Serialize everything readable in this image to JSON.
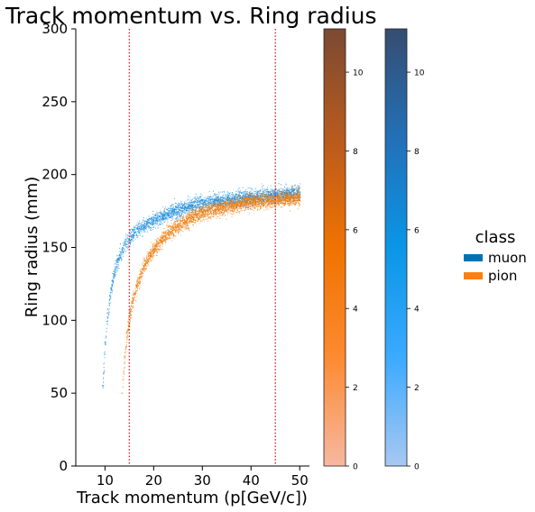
{
  "chart_data": {
    "type": "heatmap",
    "title": "Track momentum vs. Ring radius",
    "xlabel": "Track momentum (p[GeV/c])",
    "ylabel": "Ring radius (mm)",
    "xlim": [
      4,
      52
    ],
    "ylim": [
      0,
      300
    ],
    "xticks": [
      10,
      20,
      30,
      40,
      50
    ],
    "yticks": [
      0,
      50,
      100,
      150,
      200,
      250,
      300
    ],
    "vlines": [
      15,
      45
    ],
    "vline_color": "#d62728",
    "legend": {
      "title": "class",
      "placement": "right",
      "entries": [
        {
          "label": "muon",
          "color": "#0173b2"
        },
        {
          "label": "pion",
          "color": "#ff7f0e"
        }
      ]
    },
    "series": [
      {
        "name": "muon",
        "color": "#1f8fe0",
        "points": [
          [
            9.5,
            55
          ],
          [
            10,
            85
          ],
          [
            10.5,
            105
          ],
          [
            11,
            117
          ],
          [
            11.5,
            127
          ],
          [
            12,
            135
          ],
          [
            12.5,
            140
          ],
          [
            13,
            145
          ],
          [
            13.5,
            149
          ],
          [
            14,
            152
          ],
          [
            15,
            156
          ],
          [
            16,
            160
          ],
          [
            17,
            163
          ],
          [
            18,
            165
          ],
          [
            19,
            167
          ],
          [
            20,
            169
          ],
          [
            22,
            172
          ],
          [
            24,
            175
          ],
          [
            26,
            177
          ],
          [
            28,
            179
          ],
          [
            30,
            180
          ],
          [
            33,
            182
          ],
          [
            36,
            183
          ],
          [
            39,
            184
          ],
          [
            42,
            185
          ],
          [
            45,
            186
          ],
          [
            48,
            187
          ],
          [
            50,
            188
          ]
        ]
      },
      {
        "name": "pion",
        "color": "#f07c0c",
        "points": [
          [
            13.5,
            50
          ],
          [
            14,
            75
          ],
          [
            14.5,
            92
          ],
          [
            15,
            103
          ],
          [
            15.5,
            112
          ],
          [
            16,
            118
          ],
          [
            16.5,
            124
          ],
          [
            17,
            129
          ],
          [
            18,
            137
          ],
          [
            19,
            144
          ],
          [
            20,
            149
          ],
          [
            22,
            157
          ],
          [
            24,
            163
          ],
          [
            26,
            167
          ],
          [
            28,
            171
          ],
          [
            30,
            174
          ],
          [
            33,
            177
          ],
          [
            36,
            179
          ],
          [
            39,
            181
          ],
          [
            42,
            182
          ],
          [
            45,
            183
          ],
          [
            48,
            184
          ],
          [
            50,
            185
          ]
        ]
      }
    ],
    "colorbars": [
      {
        "name": "pion",
        "ticks": [
          0,
          2,
          4,
          6,
          8,
          10
        ],
        "max": 11.1,
        "stops": [
          "#f6b8a0",
          "#fd8a30",
          "#f07300",
          "#b85a1e",
          "#7a4a32"
        ]
      },
      {
        "name": "muon",
        "ticks": [
          0,
          2,
          4,
          6,
          8,
          10
        ],
        "max": 11.1,
        "stops": [
          "#a8c8f2",
          "#3aaaff",
          "#0a96e6",
          "#2370b8",
          "#364d70"
        ]
      }
    ]
  }
}
